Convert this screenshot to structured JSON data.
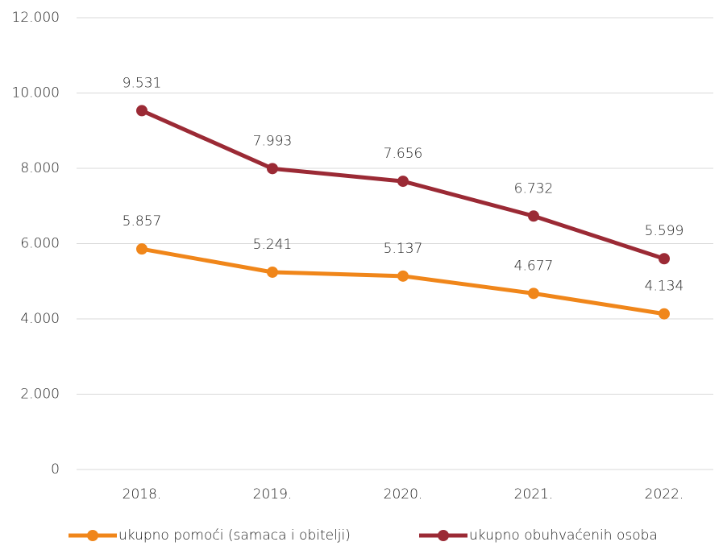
{
  "chart_data": {
    "type": "line",
    "categories": [
      "2018.",
      "2019.",
      "2020.",
      "2021.",
      "2022."
    ],
    "series": [
      {
        "name": "ukupno pomoći (samaca i obitelji)",
        "color": "#f0861a",
        "values": [
          5857,
          5241,
          5137,
          4677,
          4134
        ],
        "value_labels": [
          "5.857",
          "5.241",
          "5.137",
          "4.677",
          "4.134"
        ]
      },
      {
        "name": "ukupno obuhvaćenih osoba",
        "color": "#9b2a35",
        "values": [
          9531,
          7993,
          7656,
          6732,
          5599
        ],
        "value_labels": [
          "9.531",
          "7.993",
          "7.656",
          "6.732",
          "5.599"
        ]
      }
    ],
    "ylim": [
      0,
      12000
    ],
    "yticks": [
      0,
      {
        "value": 2000,
        "label": "2.000"
      },
      {
        "value": 4000,
        "label": "4.000"
      },
      {
        "value": 6000,
        "label": "6.000"
      },
      {
        "value": 8000,
        "label": "8.000"
      },
      {
        "value": 10000,
        "label": "10.000"
      },
      {
        "value": 12000,
        "label": "12.000"
      }
    ],
    "grid": true,
    "legend": "bottom"
  }
}
